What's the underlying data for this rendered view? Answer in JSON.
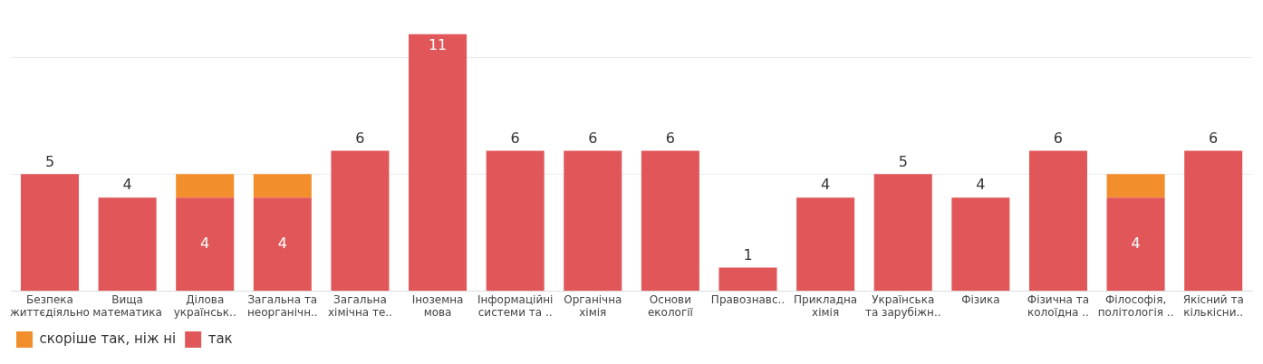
{
  "chart_data": {
    "type": "bar",
    "stacked": true,
    "categories": [
      "Безпека\nжиттєдіяльно",
      "Вища\nматематика",
      "Ділова\nукраїнськ..",
      "Загальна та\nнеорганічн..",
      "Загальна\nхімічна те..",
      "Іноземна\nмова",
      "Інформаційні\nсистеми та ..",
      "Органічна\nхімія",
      "Основи\nекології",
      "Правознавс..",
      "Прикладна\nхімія",
      "Українська\nта зарубіжн..",
      "Фізика",
      "Фізична та\nколоїдна ..",
      "Філософія,\nполітологія ..",
      "Якісний та\nкількісни.."
    ],
    "series": [
      {
        "name": "так",
        "color": "#e15759",
        "values": [
          5,
          4,
          4,
          4,
          6,
          11,
          6,
          6,
          6,
          1,
          4,
          5,
          4,
          6,
          4,
          6
        ],
        "value_labels": [
          "5",
          "4",
          "4",
          "4",
          "6",
          "11",
          "6",
          "6",
          "6",
          "1",
          "4",
          "5",
          "4",
          "6",
          "4",
          "6"
        ]
      },
      {
        "name": "скоріше так, ніж ні",
        "color": "#f28e2b",
        "values": [
          null,
          null,
          1,
          1,
          null,
          null,
          null,
          null,
          null,
          null,
          null,
          null,
          null,
          null,
          1,
          null
        ]
      }
    ],
    "ref_lines": [
      {
        "axis": "y",
        "value": 5,
        "color": "#ebebeb"
      },
      {
        "axis": "y",
        "value": 10,
        "color": "#ebebeb"
      }
    ],
    "tick_labels": "x",
    "legend": "bottom left"
  }
}
